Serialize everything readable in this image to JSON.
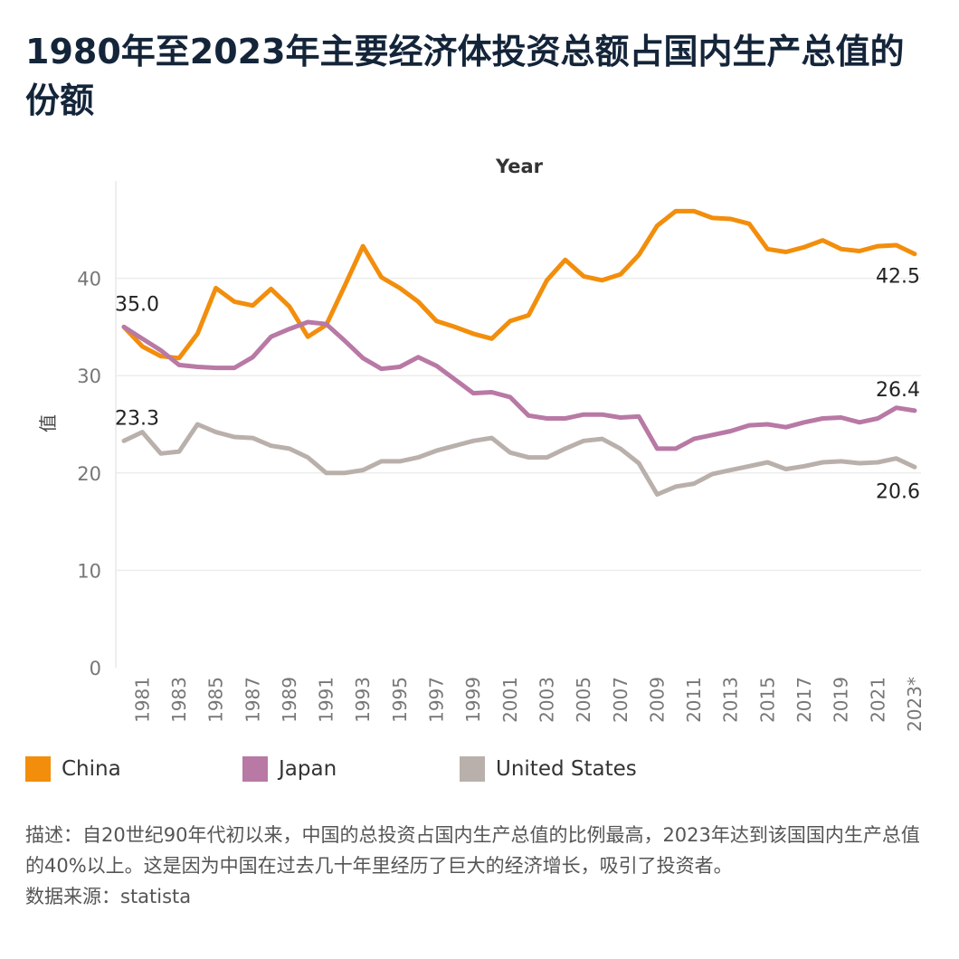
{
  "title": "1980年至2023年主要经济体投资总额占国内生产总值的份额",
  "chart_data": {
    "type": "line",
    "x_axis_title": "Year",
    "ylabel": "值",
    "ylim": [
      0,
      50
    ],
    "yticks": [
      0,
      10,
      20,
      30,
      40
    ],
    "x": [
      1980,
      1981,
      1982,
      1983,
      1984,
      1985,
      1986,
      1987,
      1988,
      1989,
      1990,
      1991,
      1992,
      1993,
      1994,
      1995,
      1996,
      1997,
      1998,
      1999,
      2000,
      2001,
      2002,
      2003,
      2004,
      2005,
      2006,
      2007,
      2008,
      2009,
      2010,
      2011,
      2012,
      2013,
      2014,
      2015,
      2016,
      2017,
      2018,
      2019,
      2020,
      2021,
      2022,
      2023
    ],
    "xtick_labels": [
      "1981",
      "1983",
      "1985",
      "1987",
      "1989",
      "1991",
      "1993",
      "1995",
      "1997",
      "1999",
      "2001",
      "2003",
      "2005",
      "2007",
      "2009",
      "2011",
      "2013",
      "2015",
      "2017",
      "2019",
      "2021",
      "2023*"
    ],
    "grid": true,
    "legend_position": "bottom",
    "series": [
      {
        "name": "China",
        "color": "#f28e0c",
        "values": [
          35.0,
          33.0,
          32.0,
          31.8,
          34.3,
          39.0,
          37.6,
          37.2,
          38.9,
          37.1,
          34.0,
          35.2,
          39.2,
          43.3,
          40.1,
          39.0,
          37.6,
          35.6,
          35.0,
          34.3,
          33.8,
          35.6,
          36.2,
          39.8,
          41.9,
          40.2,
          39.8,
          40.4,
          42.4,
          45.4,
          46.9,
          46.9,
          46.2,
          46.1,
          45.6,
          43.0,
          42.7,
          43.2,
          43.9,
          43.0,
          42.8,
          43.3,
          43.4,
          42.5
        ],
        "first_label": "35.0",
        "last_label": "42.5"
      },
      {
        "name": "Japan",
        "color": "#b879a5",
        "values": [
          35.0,
          33.8,
          32.6,
          31.1,
          30.9,
          30.8,
          30.8,
          31.9,
          34.0,
          34.8,
          35.5,
          35.3,
          33.6,
          31.8,
          30.7,
          30.9,
          31.9,
          31.0,
          29.6,
          28.2,
          28.3,
          27.8,
          25.9,
          25.6,
          25.6,
          26.0,
          26.0,
          25.7,
          25.8,
          22.5,
          22.5,
          23.5,
          23.9,
          24.3,
          24.9,
          25.0,
          24.7,
          25.2,
          25.6,
          25.7,
          25.2,
          25.6,
          26.7,
          26.4
        ],
        "last_label": "26.4"
      },
      {
        "name": "United States",
        "color": "#bab0ab",
        "values": [
          23.3,
          24.2,
          22.0,
          22.2,
          25.0,
          24.2,
          23.7,
          23.6,
          22.8,
          22.5,
          21.6,
          20.0,
          20.0,
          20.3,
          21.2,
          21.2,
          21.6,
          22.3,
          22.8,
          23.3,
          23.6,
          22.1,
          21.6,
          21.6,
          22.5,
          23.3,
          23.5,
          22.5,
          21.0,
          17.8,
          18.6,
          18.9,
          19.9,
          20.3,
          20.7,
          21.1,
          20.4,
          20.7,
          21.1,
          21.2,
          21.0,
          21.1,
          21.5,
          20.6
        ],
        "first_label": "23.3",
        "last_label": "20.6"
      }
    ]
  },
  "legend": [
    {
      "label": "China",
      "color": "#f28e0c"
    },
    {
      "label": "Japan",
      "color": "#b879a5"
    },
    {
      "label": "United States",
      "color": "#bab0ab"
    }
  ],
  "footer": {
    "description": "描述：自20世纪90年代初以来，中国的总投资占国内生产总值的比例最高，2023年达到该国国内生产总值的40%以上。这是因为中国在过去几十年里经历了巨大的经济增长，吸引了投资者。",
    "source": "数据来源：statista"
  }
}
